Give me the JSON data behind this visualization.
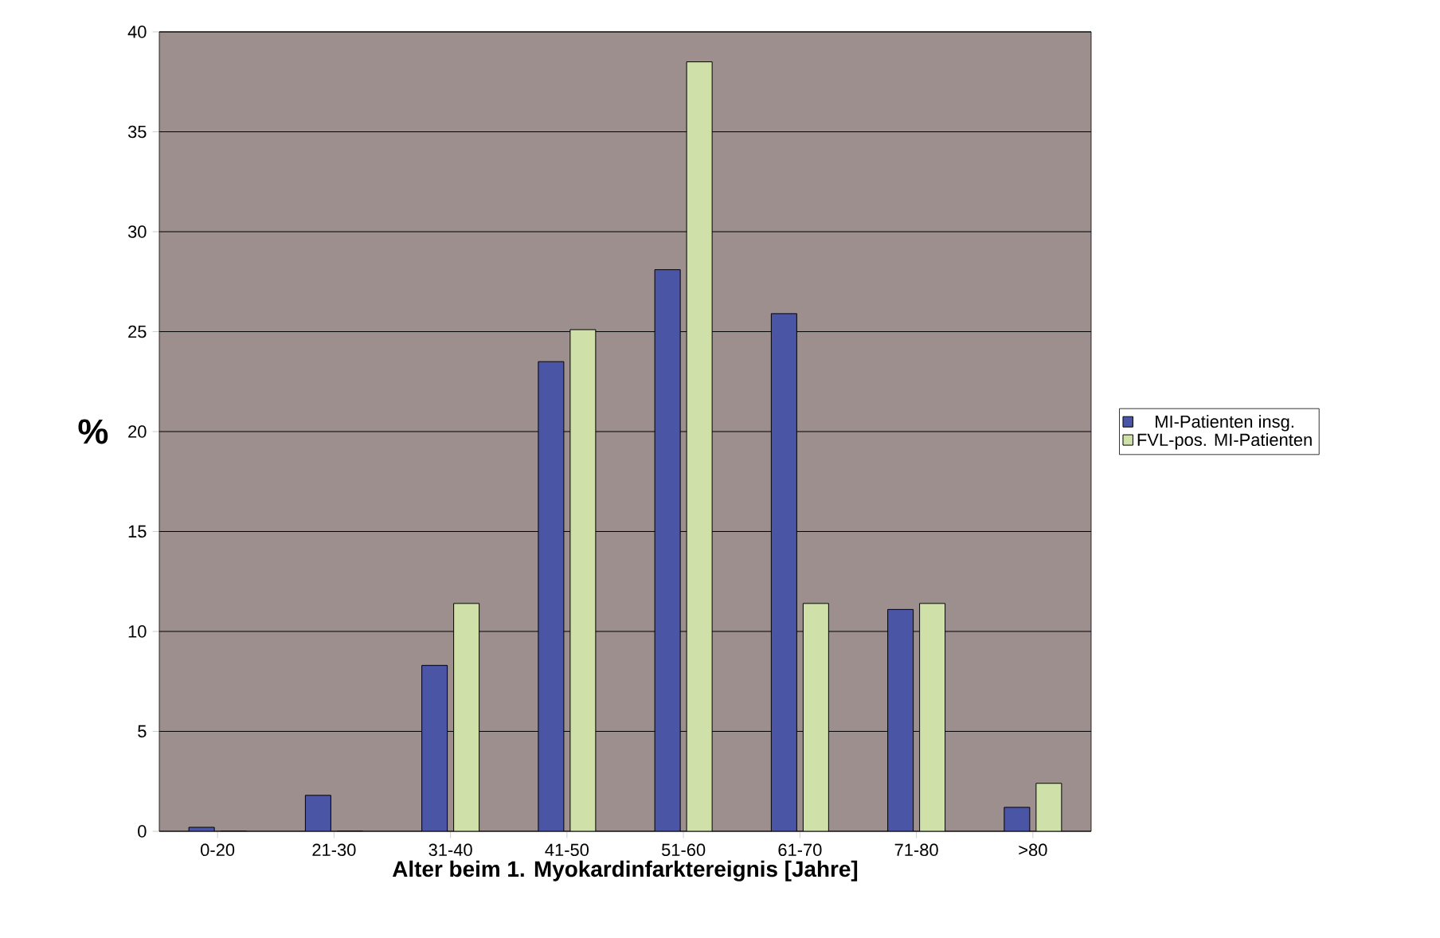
{
  "chart_data": {
    "type": "bar",
    "xlabel": "Alter beim 1. Myokardinfarktereignis [Jahre]",
    "ylabel": "%",
    "categories": [
      "0-20",
      "21-30",
      "31-40",
      "41-50",
      "51-60",
      "61-70",
      "71-80",
      ">80"
    ],
    "series": [
      {
        "name": "MI-Patienten insg.",
        "color": "#4a55a6",
        "values": [
          0.2,
          1.8,
          8.3,
          23.5,
          28.1,
          25.9,
          11.1,
          1.2
        ]
      },
      {
        "name": "FVL-pos. MI-Patienten",
        "color": "#cfe0a8",
        "values": [
          0,
          0,
          11.4,
          25.1,
          38.5,
          11.4,
          11.4,
          2.4
        ]
      }
    ],
    "ylim": [
      0,
      40
    ],
    "yticks": [
      0,
      5,
      10,
      15,
      20,
      25,
      30,
      35,
      40
    ],
    "grid": "y",
    "legend": "right"
  }
}
